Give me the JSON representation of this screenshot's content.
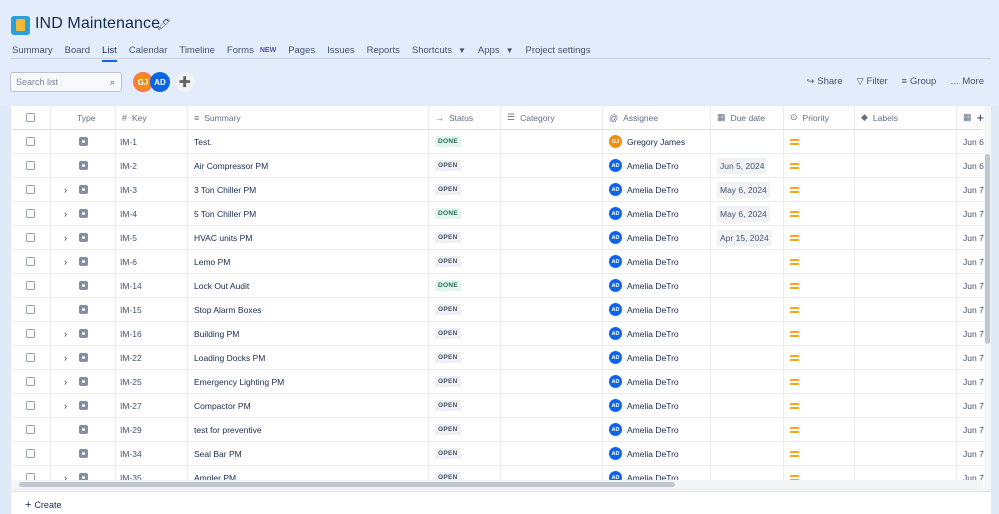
{
  "project": {
    "title": "IND Maintenance"
  },
  "tabs": [
    {
      "label": "Summary"
    },
    {
      "label": "Board"
    },
    {
      "label": "List"
    },
    {
      "label": "Calendar"
    },
    {
      "label": "Timeline"
    },
    {
      "label": "Forms",
      "badge": "NEW"
    },
    {
      "label": "Pages"
    },
    {
      "label": "Issues"
    },
    {
      "label": "Reports"
    },
    {
      "label": "Shortcuts"
    },
    {
      "label": "Apps"
    },
    {
      "label": "Project settings"
    }
  ],
  "toolbar": {
    "search_placeholder": "Search list",
    "avatar_gj": "GJ",
    "avatar_ad": "AD",
    "share": "Share",
    "filter": "Filter",
    "group": "Group",
    "more": "More"
  },
  "columns": {
    "type": "Type",
    "key": "Key",
    "summary": "Summary",
    "status": "Status",
    "category": "Category",
    "assignee": "Assignee",
    "due": "Due date",
    "priority": "Priority",
    "labels": "Labels"
  },
  "rows": [
    {
      "key": "IM-1",
      "summary": "Test.",
      "status": "DONE",
      "assignee": "Gregory James",
      "initials": "GJ",
      "due": "",
      "extra": "Jun 6"
    },
    {
      "key": "IM-2",
      "summary": "Air Compressor PM",
      "status": "OPEN",
      "assignee": "Amelia DeTro",
      "initials": "AD",
      "due": "Jun 5, 2024",
      "extra": "Jun 6"
    },
    {
      "key": "IM-3",
      "summary": "3 Ton Chiller PM",
      "status": "OPEN",
      "assignee": "Amelia DeTro",
      "initials": "AD",
      "due": "May 6, 2024",
      "extra": "Jun 7"
    },
    {
      "key": "IM-4",
      "summary": "5 Ton Chiller PM",
      "status": "DONE",
      "assignee": "Amelia DeTro",
      "initials": "AD",
      "due": "May 6, 2024",
      "extra": "Jun 7"
    },
    {
      "key": "IM-5",
      "summary": "HVAC units PM",
      "status": "OPEN",
      "assignee": "Amelia DeTro",
      "initials": "AD",
      "due": "Apr 15, 2024",
      "extra": "Jun 7"
    },
    {
      "key": "IM-6",
      "summary": "Lemo PM",
      "status": "OPEN",
      "assignee": "Amelia DeTro",
      "initials": "AD",
      "due": "",
      "extra": "Jun 7"
    },
    {
      "key": "IM-14",
      "summary": "Lock Out Audit",
      "status": "DONE",
      "assignee": "Amelia DeTro",
      "initials": "AD",
      "due": "",
      "extra": "Jun 7"
    },
    {
      "key": "IM-15",
      "summary": "Stop Alarm Boxes",
      "status": "OPEN",
      "assignee": "Amelia DeTro",
      "initials": "AD",
      "due": "",
      "extra": "Jun 7"
    },
    {
      "key": "IM-16",
      "summary": "Building PM",
      "status": "OPEN",
      "assignee": "Amelia DeTro",
      "initials": "AD",
      "due": "",
      "extra": "Jun 7"
    },
    {
      "key": "IM-22",
      "summary": "Loading Docks PM",
      "status": "OPEN",
      "assignee": "Amelia DeTro",
      "initials": "AD",
      "due": "",
      "extra": "Jun 7"
    },
    {
      "key": "IM-25",
      "summary": "Emergency Lighting PM",
      "status": "OPEN",
      "assignee": "Amelia DeTro",
      "initials": "AD",
      "due": "",
      "extra": "Jun 7"
    },
    {
      "key": "IM-27",
      "summary": "Compactor PM",
      "status": "OPEN",
      "assignee": "Amelia DeTro",
      "initials": "AD",
      "due": "",
      "extra": "Jun 7"
    },
    {
      "key": "IM-29",
      "summary": "test for preventive",
      "status": "OPEN",
      "assignee": "Amelia DeTro",
      "initials": "AD",
      "due": "",
      "extra": "Jun 7"
    },
    {
      "key": "IM-34",
      "summary": "Seal Bar PM",
      "status": "OPEN",
      "assignee": "Amelia DeTro",
      "initials": "AD",
      "due": "",
      "extra": "Jun 7"
    },
    {
      "key": "IM-35",
      "summary": "Ampler PM",
      "status": "OPEN",
      "assignee": "Amelia DeTro",
      "initials": "AD",
      "due": "",
      "extra": "Jun 7"
    }
  ],
  "create_label": "Create"
}
